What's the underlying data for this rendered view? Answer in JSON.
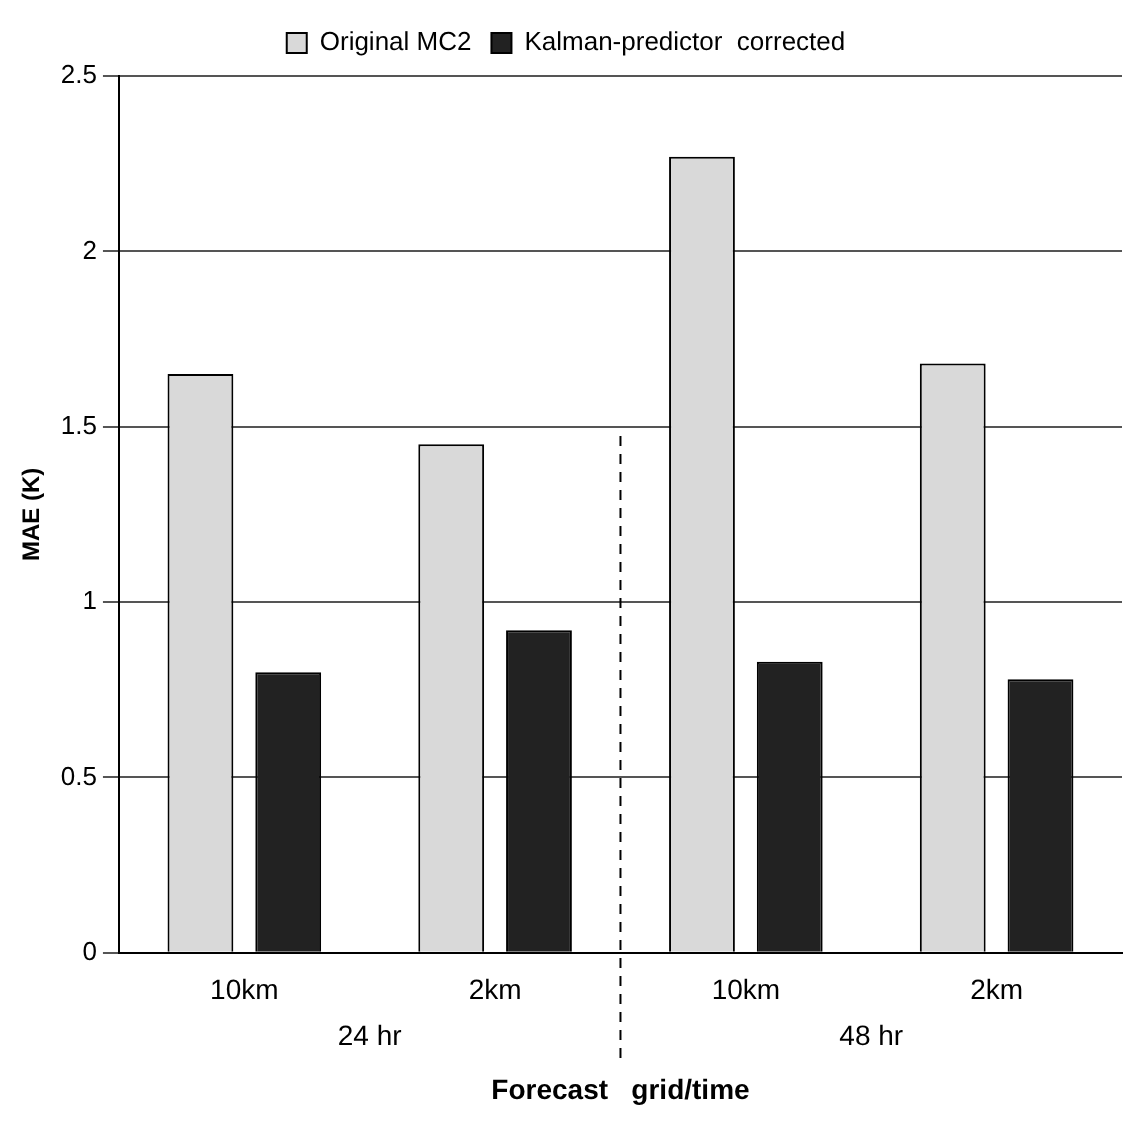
{
  "chart_data": {
    "type": "bar",
    "categories": [
      "10km",
      "2km",
      "10km",
      "2km"
    ],
    "series": [
      {
        "name": "Original MC2",
        "color": "#d9d9d9",
        "values": [
          1.65,
          1.45,
          2.27,
          1.68
        ]
      },
      {
        "name": "Kalman-predictor  corrected",
        "color": "#222222",
        "values": [
          0.8,
          0.92,
          0.83,
          0.78
        ]
      }
    ],
    "ylabel": "MAE (K)",
    "xlabel": "Forecast   grid/time",
    "annotations": [
      "24 hr",
      "48 hr"
    ],
    "ylim": [
      0,
      2.5
    ],
    "yticks": [
      0,
      0.5,
      1,
      1.5,
      2,
      2.5
    ],
    "grid": "y",
    "legend": "top"
  }
}
